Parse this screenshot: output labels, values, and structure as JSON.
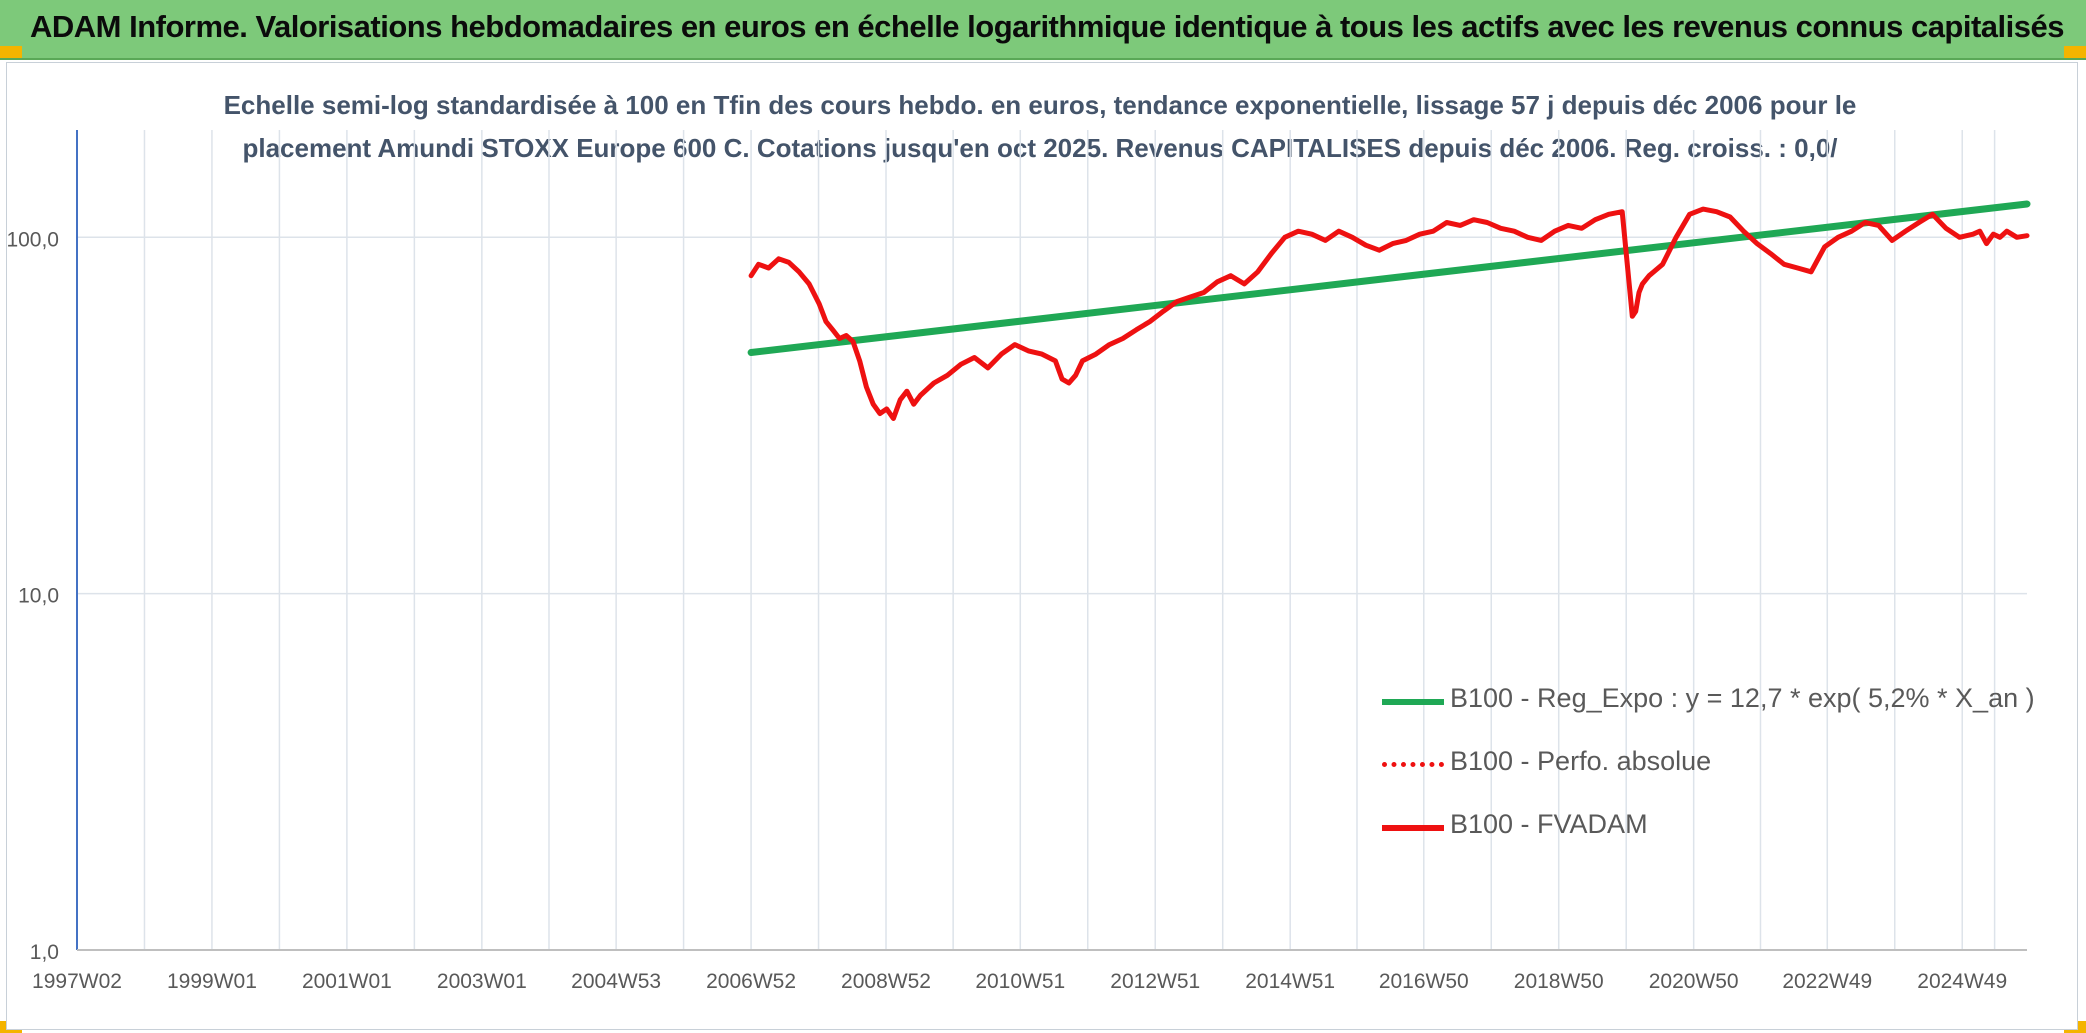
{
  "header": {
    "title": "ADAM Informe. Valorisations hebdomadaires en euros en échelle logarithmique identique à tous les actifs avec les revenus connus capitalisés"
  },
  "colors": {
    "banner": "#7dc97a",
    "trend": "#1fa855",
    "series": "#ee1111",
    "grid": "#dde3ea",
    "axis_text": "#595959"
  },
  "chart_data": {
    "type": "line",
    "title": "Echelle semi-log standardisée à 100 en Tfin des cours hebdo. en euros, tendance exponentielle, lissage 57 j depuis déc 2006 pour le placement Amundi STOXX Europe 600 C. Cotations jusqu'en oct 2025. Revenus CAPITALISES depuis déc 2006. Reg. croiss. : 0,0/",
    "title_lines": [
      "Echelle semi-log standardisée à 100 en Tfin des cours hebdo. en euros, tendance exponentielle, lissage 57 j depuis déc 2006 pour le",
      "placement Amundi STOXX Europe 600 C. Cotations jusqu'en oct 2025. Revenus CAPITALISES depuis déc 2006. Reg. croiss. : 0,0/"
    ],
    "y_scale": "log",
    "ylim": [
      1,
      200
    ],
    "y_ticks": [
      {
        "value": 1,
        "label": "1,0"
      },
      {
        "value": 10,
        "label": "10,0"
      },
      {
        "value": 100,
        "label": "100,0"
      }
    ],
    "xlim": [
      1997.0,
      2025.9
    ],
    "x_ticks": [
      {
        "value": 1997.0,
        "label": "1997W02"
      },
      {
        "value": 1999.0,
        "label": "1999W01"
      },
      {
        "value": 2001.0,
        "label": "2001W01"
      },
      {
        "value": 2003.0,
        "label": "2003W01"
      },
      {
        "value": 2004.99,
        "label": "2004W53"
      },
      {
        "value": 2006.99,
        "label": "2006W52"
      },
      {
        "value": 2008.99,
        "label": "2008W52"
      },
      {
        "value": 2010.98,
        "label": "2010W51"
      },
      {
        "value": 2012.98,
        "label": "2012W51"
      },
      {
        "value": 2014.98,
        "label": "2014W51"
      },
      {
        "value": 2016.96,
        "label": "2016W50"
      },
      {
        "value": 2018.96,
        "label": "2018W50"
      },
      {
        "value": 2020.96,
        "label": "2020W50"
      },
      {
        "value": 2022.94,
        "label": "2022W49"
      },
      {
        "value": 2024.94,
        "label": "2024W49"
      }
    ],
    "grid": true,
    "legend_position": "lower-right",
    "series": [
      {
        "name": "B100 - Reg_Expo : y = 12,7 * exp( 5,2% *  X_an )",
        "style": "solid",
        "color": "#1fa855",
        "x": [
          2006.99,
          2025.9
        ],
        "y": [
          47.5,
          124
        ]
      },
      {
        "name": "B100 - Perfo. absolue",
        "style": "dotted",
        "color": "#ee1111",
        "x": [],
        "y": []
      },
      {
        "name": "B100 - FVADAM",
        "style": "solid",
        "color": "#ee1111",
        "x": [
          2006.99,
          2007.1,
          2007.25,
          2007.4,
          2007.55,
          2007.7,
          2007.85,
          2008.0,
          2008.1,
          2008.2,
          2008.3,
          2008.4,
          2008.5,
          2008.6,
          2008.7,
          2008.8,
          2008.9,
          2009.0,
          2009.1,
          2009.2,
          2009.3,
          2009.4,
          2009.5,
          2009.7,
          2009.9,
          2010.1,
          2010.3,
          2010.5,
          2010.7,
          2010.9,
          2011.1,
          2011.3,
          2011.5,
          2011.6,
          2011.7,
          2011.8,
          2011.9,
          2012.1,
          2012.3,
          2012.5,
          2012.7,
          2012.9,
          2013.1,
          2013.3,
          2013.5,
          2013.7,
          2013.9,
          2014.1,
          2014.3,
          2014.5,
          2014.7,
          2014.9,
          2015.1,
          2015.3,
          2015.5,
          2015.7,
          2015.9,
          2016.1,
          2016.3,
          2016.5,
          2016.7,
          2016.9,
          2017.1,
          2017.3,
          2017.5,
          2017.7,
          2017.9,
          2018.1,
          2018.3,
          2018.5,
          2018.7,
          2018.9,
          2019.1,
          2019.3,
          2019.5,
          2019.7,
          2019.9,
          2020.05,
          2020.1,
          2020.15,
          2020.2,
          2020.3,
          2020.5,
          2020.7,
          2020.9,
          2021.1,
          2021.3,
          2021.5,
          2021.7,
          2021.9,
          2022.1,
          2022.3,
          2022.5,
          2022.7,
          2022.9,
          2023.1,
          2023.3,
          2023.5,
          2023.7,
          2023.9,
          2024.1,
          2024.3,
          2024.5,
          2024.7,
          2024.9,
          2025.1,
          2025.2,
          2025.3,
          2025.4,
          2025.5,
          2025.6,
          2025.75,
          2025.9
        ],
        "y": [
          78,
          84,
          82,
          87,
          85,
          80,
          74,
          65,
          58,
          55,
          52,
          53,
          51,
          45,
          38,
          34,
          32,
          33,
          31,
          35,
          37,
          34,
          36,
          39,
          41,
          44,
          46,
          43,
          47,
          50,
          48,
          47,
          45,
          40,
          39,
          41,
          45,
          47,
          50,
          52,
          55,
          58,
          62,
          66,
          68,
          70,
          75,
          78,
          74,
          80,
          90,
          100,
          104,
          102,
          98,
          104,
          100,
          95,
          92,
          96,
          98,
          102,
          104,
          110,
          108,
          112,
          110,
          106,
          104,
          100,
          98,
          104,
          108,
          106,
          112,
          116,
          118,
          60,
          62,
          70,
          74,
          78,
          84,
          100,
          116,
          120,
          118,
          114,
          104,
          96,
          90,
          84,
          82,
          80,
          94,
          100,
          104,
          110,
          108,
          98,
          104,
          110,
          116,
          106,
          100,
          102,
          104,
          96,
          102,
          100,
          104,
          100,
          101
        ]
      }
    ]
  }
}
